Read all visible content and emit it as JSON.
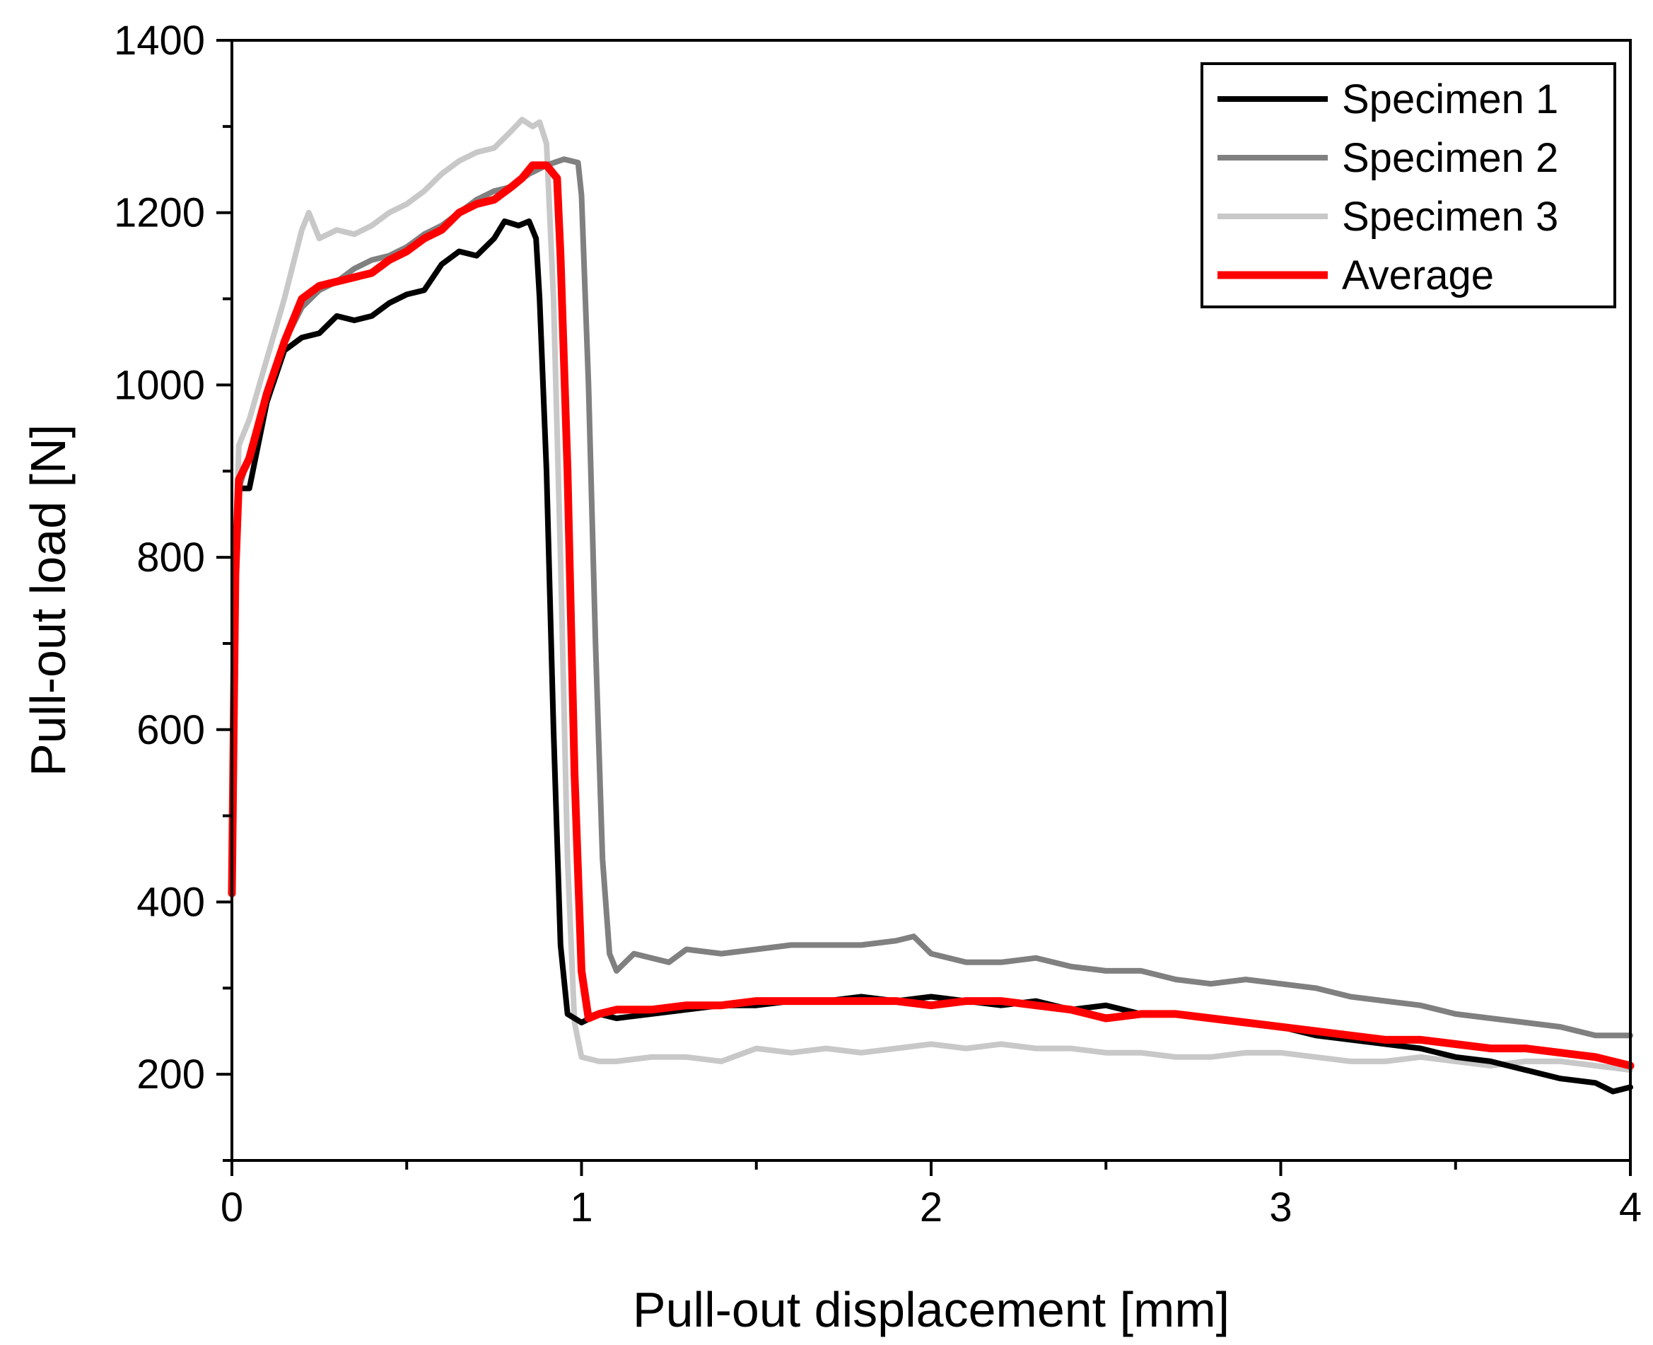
{
  "chart_data": {
    "type": "line",
    "title": "",
    "xlabel": "Pull-out displacement [mm]",
    "ylabel": "Pull-out load [N]",
    "xlim": [
      0,
      4
    ],
    "ylim": [
      100,
      1400
    ],
    "x_ticks": [
      0,
      1,
      2,
      3,
      4
    ],
    "x_minor_ticks": [
      0.5,
      1.5,
      2.5,
      3.5
    ],
    "y_ticks": [
      200,
      400,
      600,
      800,
      1000,
      1200,
      1400
    ],
    "y_minor_ticks": [
      100,
      300,
      500,
      700,
      900,
      1100,
      1300
    ],
    "grid": false,
    "legend_position": "top-right",
    "series": [
      {
        "name": "Specimen 1",
        "color": "#000000",
        "points": [
          [
            0,
            430
          ],
          [
            0.01,
            760
          ],
          [
            0.02,
            880
          ],
          [
            0.05,
            880
          ],
          [
            0.1,
            980
          ],
          [
            0.15,
            1040
          ],
          [
            0.2,
            1055
          ],
          [
            0.25,
            1060
          ],
          [
            0.3,
            1080
          ],
          [
            0.35,
            1075
          ],
          [
            0.4,
            1080
          ],
          [
            0.45,
            1095
          ],
          [
            0.5,
            1105
          ],
          [
            0.55,
            1110
          ],
          [
            0.6,
            1140
          ],
          [
            0.65,
            1155
          ],
          [
            0.7,
            1150
          ],
          [
            0.75,
            1170
          ],
          [
            0.78,
            1190
          ],
          [
            0.82,
            1185
          ],
          [
            0.85,
            1190
          ],
          [
            0.87,
            1170
          ],
          [
            0.88,
            1100
          ],
          [
            0.9,
            900
          ],
          [
            0.92,
            600
          ],
          [
            0.94,
            350
          ],
          [
            0.96,
            270
          ],
          [
            1.0,
            260
          ],
          [
            1.05,
            270
          ],
          [
            1.1,
            265
          ],
          [
            1.2,
            270
          ],
          [
            1.3,
            275
          ],
          [
            1.4,
            280
          ],
          [
            1.5,
            280
          ],
          [
            1.6,
            285
          ],
          [
            1.7,
            285
          ],
          [
            1.8,
            290
          ],
          [
            1.9,
            285
          ],
          [
            2.0,
            290
          ],
          [
            2.1,
            285
          ],
          [
            2.2,
            280
          ],
          [
            2.3,
            285
          ],
          [
            2.4,
            275
          ],
          [
            2.5,
            280
          ],
          [
            2.6,
            270
          ],
          [
            2.7,
            270
          ],
          [
            2.8,
            265
          ],
          [
            2.9,
            260
          ],
          [
            3.0,
            255
          ],
          [
            3.1,
            245
          ],
          [
            3.2,
            240
          ],
          [
            3.3,
            235
          ],
          [
            3.4,
            230
          ],
          [
            3.5,
            220
          ],
          [
            3.6,
            215
          ],
          [
            3.7,
            205
          ],
          [
            3.8,
            195
          ],
          [
            3.9,
            190
          ],
          [
            3.95,
            180
          ],
          [
            4.0,
            185
          ]
        ]
      },
      {
        "name": "Specimen 2",
        "color": "#808080",
        "points": [
          [
            0,
            420
          ],
          [
            0.01,
            760
          ],
          [
            0.02,
            880
          ],
          [
            0.05,
            920
          ],
          [
            0.1,
            990
          ],
          [
            0.15,
            1050
          ],
          [
            0.2,
            1090
          ],
          [
            0.25,
            1110
          ],
          [
            0.3,
            1120
          ],
          [
            0.35,
            1135
          ],
          [
            0.4,
            1145
          ],
          [
            0.45,
            1150
          ],
          [
            0.5,
            1160
          ],
          [
            0.55,
            1175
          ],
          [
            0.6,
            1185
          ],
          [
            0.65,
            1200
          ],
          [
            0.7,
            1215
          ],
          [
            0.75,
            1225
          ],
          [
            0.8,
            1230
          ],
          [
            0.85,
            1245
          ],
          [
            0.9,
            1255
          ],
          [
            0.95,
            1262
          ],
          [
            0.99,
            1258
          ],
          [
            1.0,
            1220
          ],
          [
            1.02,
            1000
          ],
          [
            1.04,
            700
          ],
          [
            1.06,
            450
          ],
          [
            1.08,
            340
          ],
          [
            1.1,
            320
          ],
          [
            1.15,
            340
          ],
          [
            1.2,
            335
          ],
          [
            1.25,
            330
          ],
          [
            1.3,
            345
          ],
          [
            1.4,
            340
          ],
          [
            1.5,
            345
          ],
          [
            1.6,
            350
          ],
          [
            1.7,
            350
          ],
          [
            1.8,
            350
          ],
          [
            1.9,
            355
          ],
          [
            1.95,
            360
          ],
          [
            2.0,
            340
          ],
          [
            2.1,
            330
          ],
          [
            2.2,
            330
          ],
          [
            2.3,
            335
          ],
          [
            2.4,
            325
          ],
          [
            2.5,
            320
          ],
          [
            2.6,
            320
          ],
          [
            2.7,
            310
          ],
          [
            2.8,
            305
          ],
          [
            2.9,
            310
          ],
          [
            3.0,
            305
          ],
          [
            3.1,
            300
          ],
          [
            3.2,
            290
          ],
          [
            3.3,
            285
          ],
          [
            3.4,
            280
          ],
          [
            3.5,
            270
          ],
          [
            3.6,
            265
          ],
          [
            3.7,
            260
          ],
          [
            3.8,
            255
          ],
          [
            3.9,
            245
          ],
          [
            4.0,
            245
          ]
        ]
      },
      {
        "name": "Specimen 3",
        "color": "#c8c8c8",
        "points": [
          [
            0,
            450
          ],
          [
            0.01,
            800
          ],
          [
            0.02,
            930
          ],
          [
            0.05,
            960
          ],
          [
            0.1,
            1030
          ],
          [
            0.15,
            1100
          ],
          [
            0.2,
            1180
          ],
          [
            0.22,
            1200
          ],
          [
            0.25,
            1170
          ],
          [
            0.3,
            1180
          ],
          [
            0.35,
            1175
          ],
          [
            0.4,
            1185
          ],
          [
            0.45,
            1200
          ],
          [
            0.5,
            1210
          ],
          [
            0.55,
            1225
          ],
          [
            0.6,
            1245
          ],
          [
            0.65,
            1260
          ],
          [
            0.7,
            1270
          ],
          [
            0.75,
            1275
          ],
          [
            0.8,
            1295
          ],
          [
            0.83,
            1308
          ],
          [
            0.86,
            1300
          ],
          [
            0.88,
            1305
          ],
          [
            0.9,
            1280
          ],
          [
            0.92,
            1100
          ],
          [
            0.94,
            800
          ],
          [
            0.96,
            450
          ],
          [
            0.98,
            260
          ],
          [
            1.0,
            220
          ],
          [
            1.05,
            215
          ],
          [
            1.1,
            215
          ],
          [
            1.2,
            220
          ],
          [
            1.3,
            220
          ],
          [
            1.4,
            215
          ],
          [
            1.5,
            230
          ],
          [
            1.6,
            225
          ],
          [
            1.7,
            230
          ],
          [
            1.8,
            225
          ],
          [
            1.9,
            230
          ],
          [
            2.0,
            235
          ],
          [
            2.1,
            230
          ],
          [
            2.2,
            235
          ],
          [
            2.3,
            230
          ],
          [
            2.4,
            230
          ],
          [
            2.5,
            225
          ],
          [
            2.6,
            225
          ],
          [
            2.7,
            220
          ],
          [
            2.8,
            220
          ],
          [
            2.9,
            225
          ],
          [
            3.0,
            225
          ],
          [
            3.1,
            220
          ],
          [
            3.2,
            215
          ],
          [
            3.3,
            215
          ],
          [
            3.4,
            220
          ],
          [
            3.5,
            215
          ],
          [
            3.6,
            210
          ],
          [
            3.7,
            215
          ],
          [
            3.8,
            215
          ],
          [
            3.9,
            210
          ],
          [
            4.0,
            205
          ]
        ]
      },
      {
        "name": "Average",
        "color": "#ff0000",
        "points": [
          [
            0,
            410
          ],
          [
            0.01,
            780
          ],
          [
            0.02,
            890
          ],
          [
            0.05,
            915
          ],
          [
            0.1,
            990
          ],
          [
            0.15,
            1050
          ],
          [
            0.2,
            1100
          ],
          [
            0.25,
            1115
          ],
          [
            0.3,
            1120
          ],
          [
            0.35,
            1125
          ],
          [
            0.4,
            1130
          ],
          [
            0.45,
            1145
          ],
          [
            0.5,
            1155
          ],
          [
            0.55,
            1170
          ],
          [
            0.6,
            1180
          ],
          [
            0.65,
            1200
          ],
          [
            0.7,
            1210
          ],
          [
            0.75,
            1215
          ],
          [
            0.8,
            1230
          ],
          [
            0.83,
            1240
          ],
          [
            0.86,
            1255
          ],
          [
            0.9,
            1255
          ],
          [
            0.93,
            1240
          ],
          [
            0.94,
            1150
          ],
          [
            0.96,
            900
          ],
          [
            0.98,
            550
          ],
          [
            1.0,
            320
          ],
          [
            1.02,
            265
          ],
          [
            1.05,
            270
          ],
          [
            1.1,
            275
          ],
          [
            1.2,
            275
          ],
          [
            1.3,
            280
          ],
          [
            1.4,
            280
          ],
          [
            1.5,
            285
          ],
          [
            1.6,
            285
          ],
          [
            1.7,
            285
          ],
          [
            1.8,
            285
          ],
          [
            1.9,
            285
          ],
          [
            2.0,
            280
          ],
          [
            2.1,
            285
          ],
          [
            2.2,
            285
          ],
          [
            2.3,
            280
          ],
          [
            2.4,
            275
          ],
          [
            2.5,
            265
          ],
          [
            2.6,
            270
          ],
          [
            2.7,
            270
          ],
          [
            2.8,
            265
          ],
          [
            2.9,
            260
          ],
          [
            3.0,
            255
          ],
          [
            3.1,
            250
          ],
          [
            3.2,
            245
          ],
          [
            3.3,
            240
          ],
          [
            3.4,
            240
          ],
          [
            3.5,
            235
          ],
          [
            3.6,
            230
          ],
          [
            3.7,
            230
          ],
          [
            3.8,
            225
          ],
          [
            3.9,
            220
          ],
          [
            4.0,
            210
          ]
        ]
      }
    ]
  }
}
